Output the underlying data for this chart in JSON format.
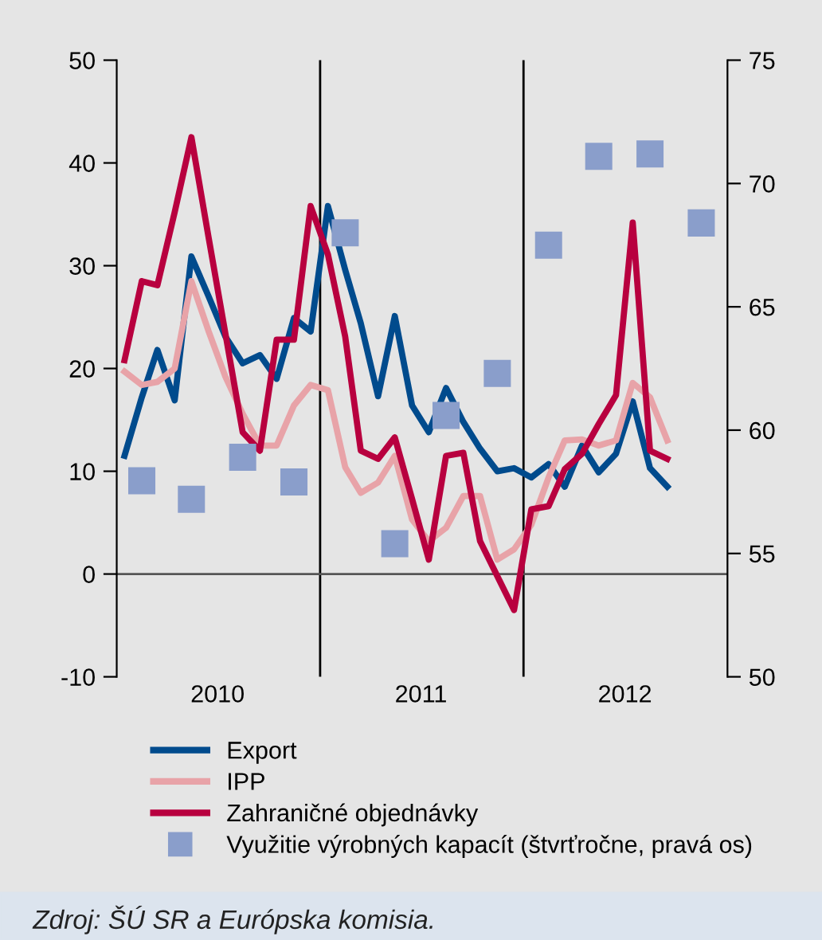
{
  "chart_data": {
    "type": "line",
    "annotations": [
      "Zdroj: ŠÚ SR a Európska komisia."
    ],
    "xlim": [
      "2010-01-01",
      "2013-01-01"
    ],
    "xticks": [
      {
        "value": "2010-07-01",
        "label": "2010"
      },
      {
        "value": "2011-07-01",
        "label": "2011"
      },
      {
        "value": "2012-07-01",
        "label": "2012"
      }
    ],
    "ylim": [
      -10,
      50
    ],
    "yticks": [
      -10,
      0,
      10,
      20,
      30,
      40,
      50
    ],
    "y2lim": [
      50,
      75
    ],
    "y2ticks": [
      50,
      55,
      60,
      65,
      70,
      75
    ],
    "grid": false,
    "legend": "bottom",
    "line_style": "solid",
    "ref_lines": [
      {
        "axis": "x",
        "value": "2011-01-01",
        "color": "#000000"
      },
      {
        "axis": "x",
        "value": "2012-01-01",
        "color": "#000000"
      },
      {
        "axis": "y",
        "value": 0,
        "color": "#555555"
      }
    ],
    "x": [
      "2010-01-15",
      "2010-02-15",
      "2010-03-15",
      "2010-04-15",
      "2010-05-15",
      "2010-06-15",
      "2010-07-15",
      "2010-08-15",
      "2010-09-15",
      "2010-10-15",
      "2010-11-15",
      "2010-12-15",
      "2011-01-15",
      "2011-02-15",
      "2011-03-15",
      "2011-04-15",
      "2011-05-15",
      "2011-06-15",
      "2011-07-15",
      "2011-08-15",
      "2011-09-15",
      "2011-10-15",
      "2011-11-15",
      "2011-12-15",
      "2012-01-15",
      "2012-02-15",
      "2012-03-15",
      "2012-04-15",
      "2012-05-15",
      "2012-06-15",
      "2012-07-15",
      "2012-08-15",
      "2012-09-15"
    ],
    "series": [
      {
        "name": "Export",
        "color": "#004b8d",
        "values": [
          11.5,
          17.2,
          21.8,
          16.9,
          30.9,
          27,
          23.1,
          20.5,
          21.3,
          19.0,
          24.9,
          23.6,
          35.8,
          29.6,
          24.4,
          17.3,
          25.1,
          16.4,
          13.8,
          18.1,
          14.8,
          12.2,
          10.0,
          10.3,
          9.4,
          10.7,
          8.5,
          12.5,
          9.9,
          11.7,
          16.8,
          10.3,
          8.5
        ]
      },
      {
        "name": "IPP",
        "color": "#e8a3a8",
        "values": [
          19.7,
          18.4,
          18.7,
          20.0,
          28.5,
          23.6,
          19.2,
          15.6,
          12.5,
          12.5,
          16.4,
          18.4,
          17.9,
          10.4,
          7.9,
          8.9,
          11.5,
          5.3,
          3.2,
          4.5,
          7.6,
          7.6,
          1.4,
          2.4,
          4.8,
          9.4,
          13.0,
          13.1,
          12.5,
          13.0,
          18.6,
          17.2,
          13.0
        ]
      },
      {
        "name": "Zahraničné objednávky",
        "color": "#b8003f",
        "values": [
          20.8,
          28.5,
          28.1,
          35.2,
          42.5,
          32.7,
          23.4,
          13.8,
          12.0,
          22.8,
          22.8,
          35.8,
          31.1,
          23.1,
          12.0,
          11.2,
          13.3,
          7.3,
          1.4,
          11.5,
          11.8,
          3.2,
          -0.2,
          -3.5,
          6.3,
          6.6,
          10.2,
          11.7,
          14.6,
          17.4,
          34.2,
          12.0,
          11.2
        ]
      },
      {
        "name": "Využitie výrobných kapacít (štvrťročne, pravá os)",
        "type": "scatter",
        "axis": "y2",
        "marker": "square",
        "color": "#8a9ecb",
        "x": [
          "2010-02-15",
          "2010-05-15",
          "2010-08-15",
          "2010-11-15",
          "2011-02-15",
          "2011-05-15",
          "2011-08-15",
          "2011-11-15",
          "2012-02-15",
          "2012-05-15",
          "2012-08-15",
          "2012-11-15"
        ],
        "values": [
          57.95,
          57.2,
          58.9,
          57.9,
          68.0,
          55.4,
          60.6,
          62.3,
          67.5,
          71.1,
          71.2,
          68.4
        ]
      }
    ]
  }
}
